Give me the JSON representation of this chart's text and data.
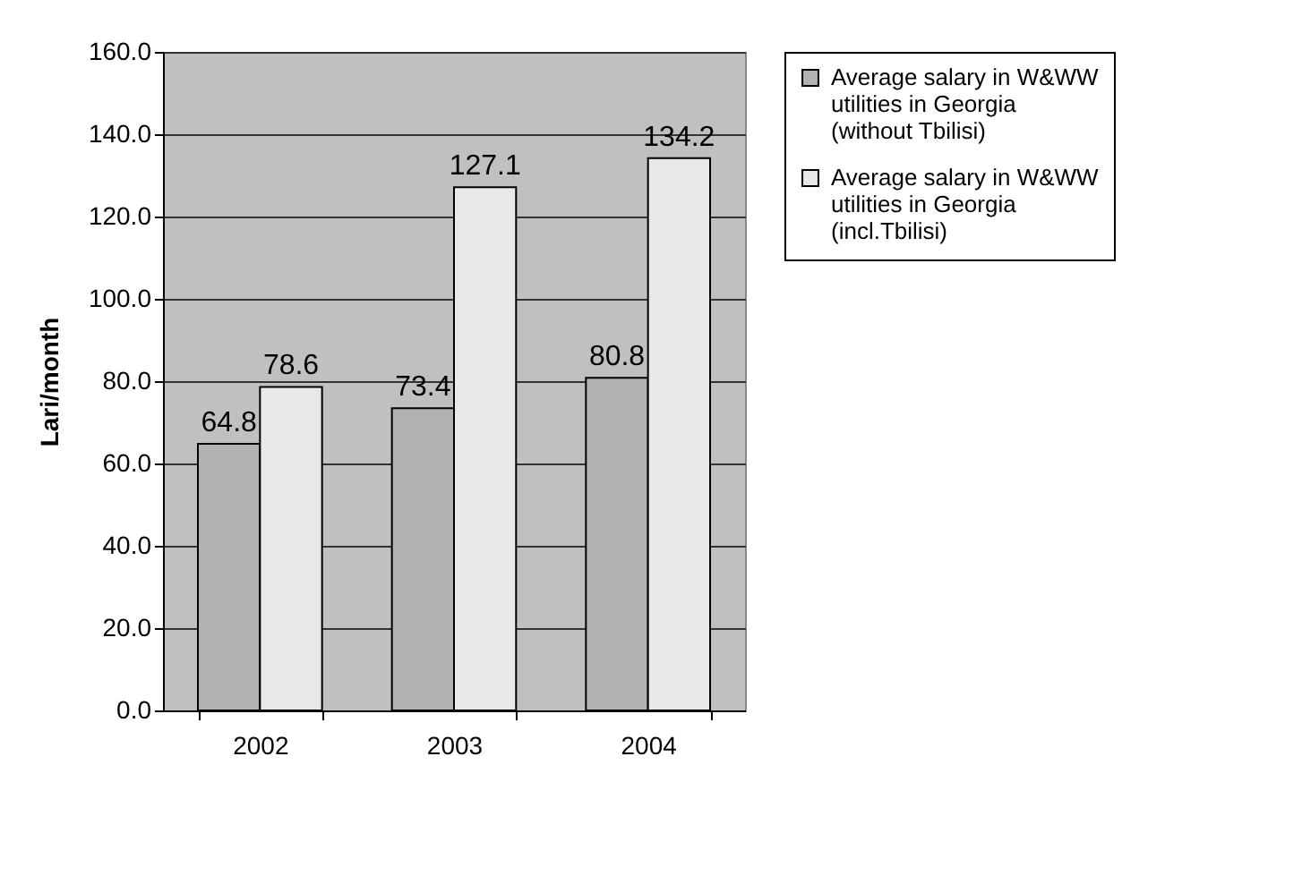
{
  "chart_data": {
    "type": "bar",
    "ylabel": "Lari/month",
    "categories": [
      "2002",
      "2003",
      "2004"
    ],
    "series": [
      {
        "name": "Average salary in W&WW utilities in Georgia (without Tbilisi)",
        "color": "#b2b2b2",
        "values": [
          64.8,
          73.4,
          80.8
        ]
      },
      {
        "name": "Average salary in W&WW utilities in Georgia (incl.Tbilisi)",
        "color": "#e8e8e8",
        "values": [
          78.6,
          127.1,
          134.2
        ]
      }
    ],
    "ylim": [
      0,
      160
    ],
    "yticks": [
      {
        "value": 0,
        "label": "0.0"
      },
      {
        "value": 20,
        "label": "20.0"
      },
      {
        "value": 40,
        "label": "40.0"
      },
      {
        "value": 60,
        "label": "60.0"
      },
      {
        "value": 80,
        "label": "80.0"
      },
      {
        "value": 100,
        "label": "100.0"
      },
      {
        "value": 120,
        "label": "120.0"
      },
      {
        "value": 140,
        "label": "140.0"
      },
      {
        "value": 160,
        "label": "160.0"
      }
    ],
    "data_labels": true,
    "grid": "y",
    "legend": "right"
  }
}
